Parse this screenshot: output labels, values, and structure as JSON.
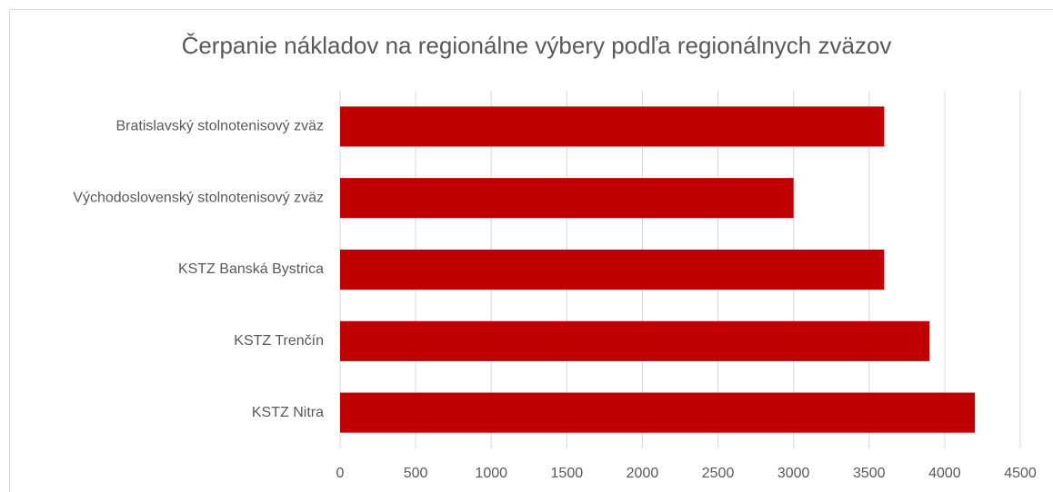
{
  "chart_data": {
    "type": "bar",
    "orientation": "horizontal",
    "title": "Čerpanie nákladov na regionálne výbery podľa regionálnych zväzov",
    "categories": [
      "Bratislavský stolnotenisový zväz",
      "Východoslovenský stolnotenisový zväz",
      "KSTZ Banská Bystrica",
      "KSTZ Trenčín",
      "KSTZ Nitra"
    ],
    "values": [
      3600,
      3000,
      3600,
      3900,
      4200
    ],
    "color": "#c00000",
    "xlim": [
      0,
      4500
    ],
    "xticks": [
      0,
      500,
      1000,
      1500,
      2000,
      2500,
      3000,
      3500,
      4000,
      4500
    ],
    "grid": true
  }
}
